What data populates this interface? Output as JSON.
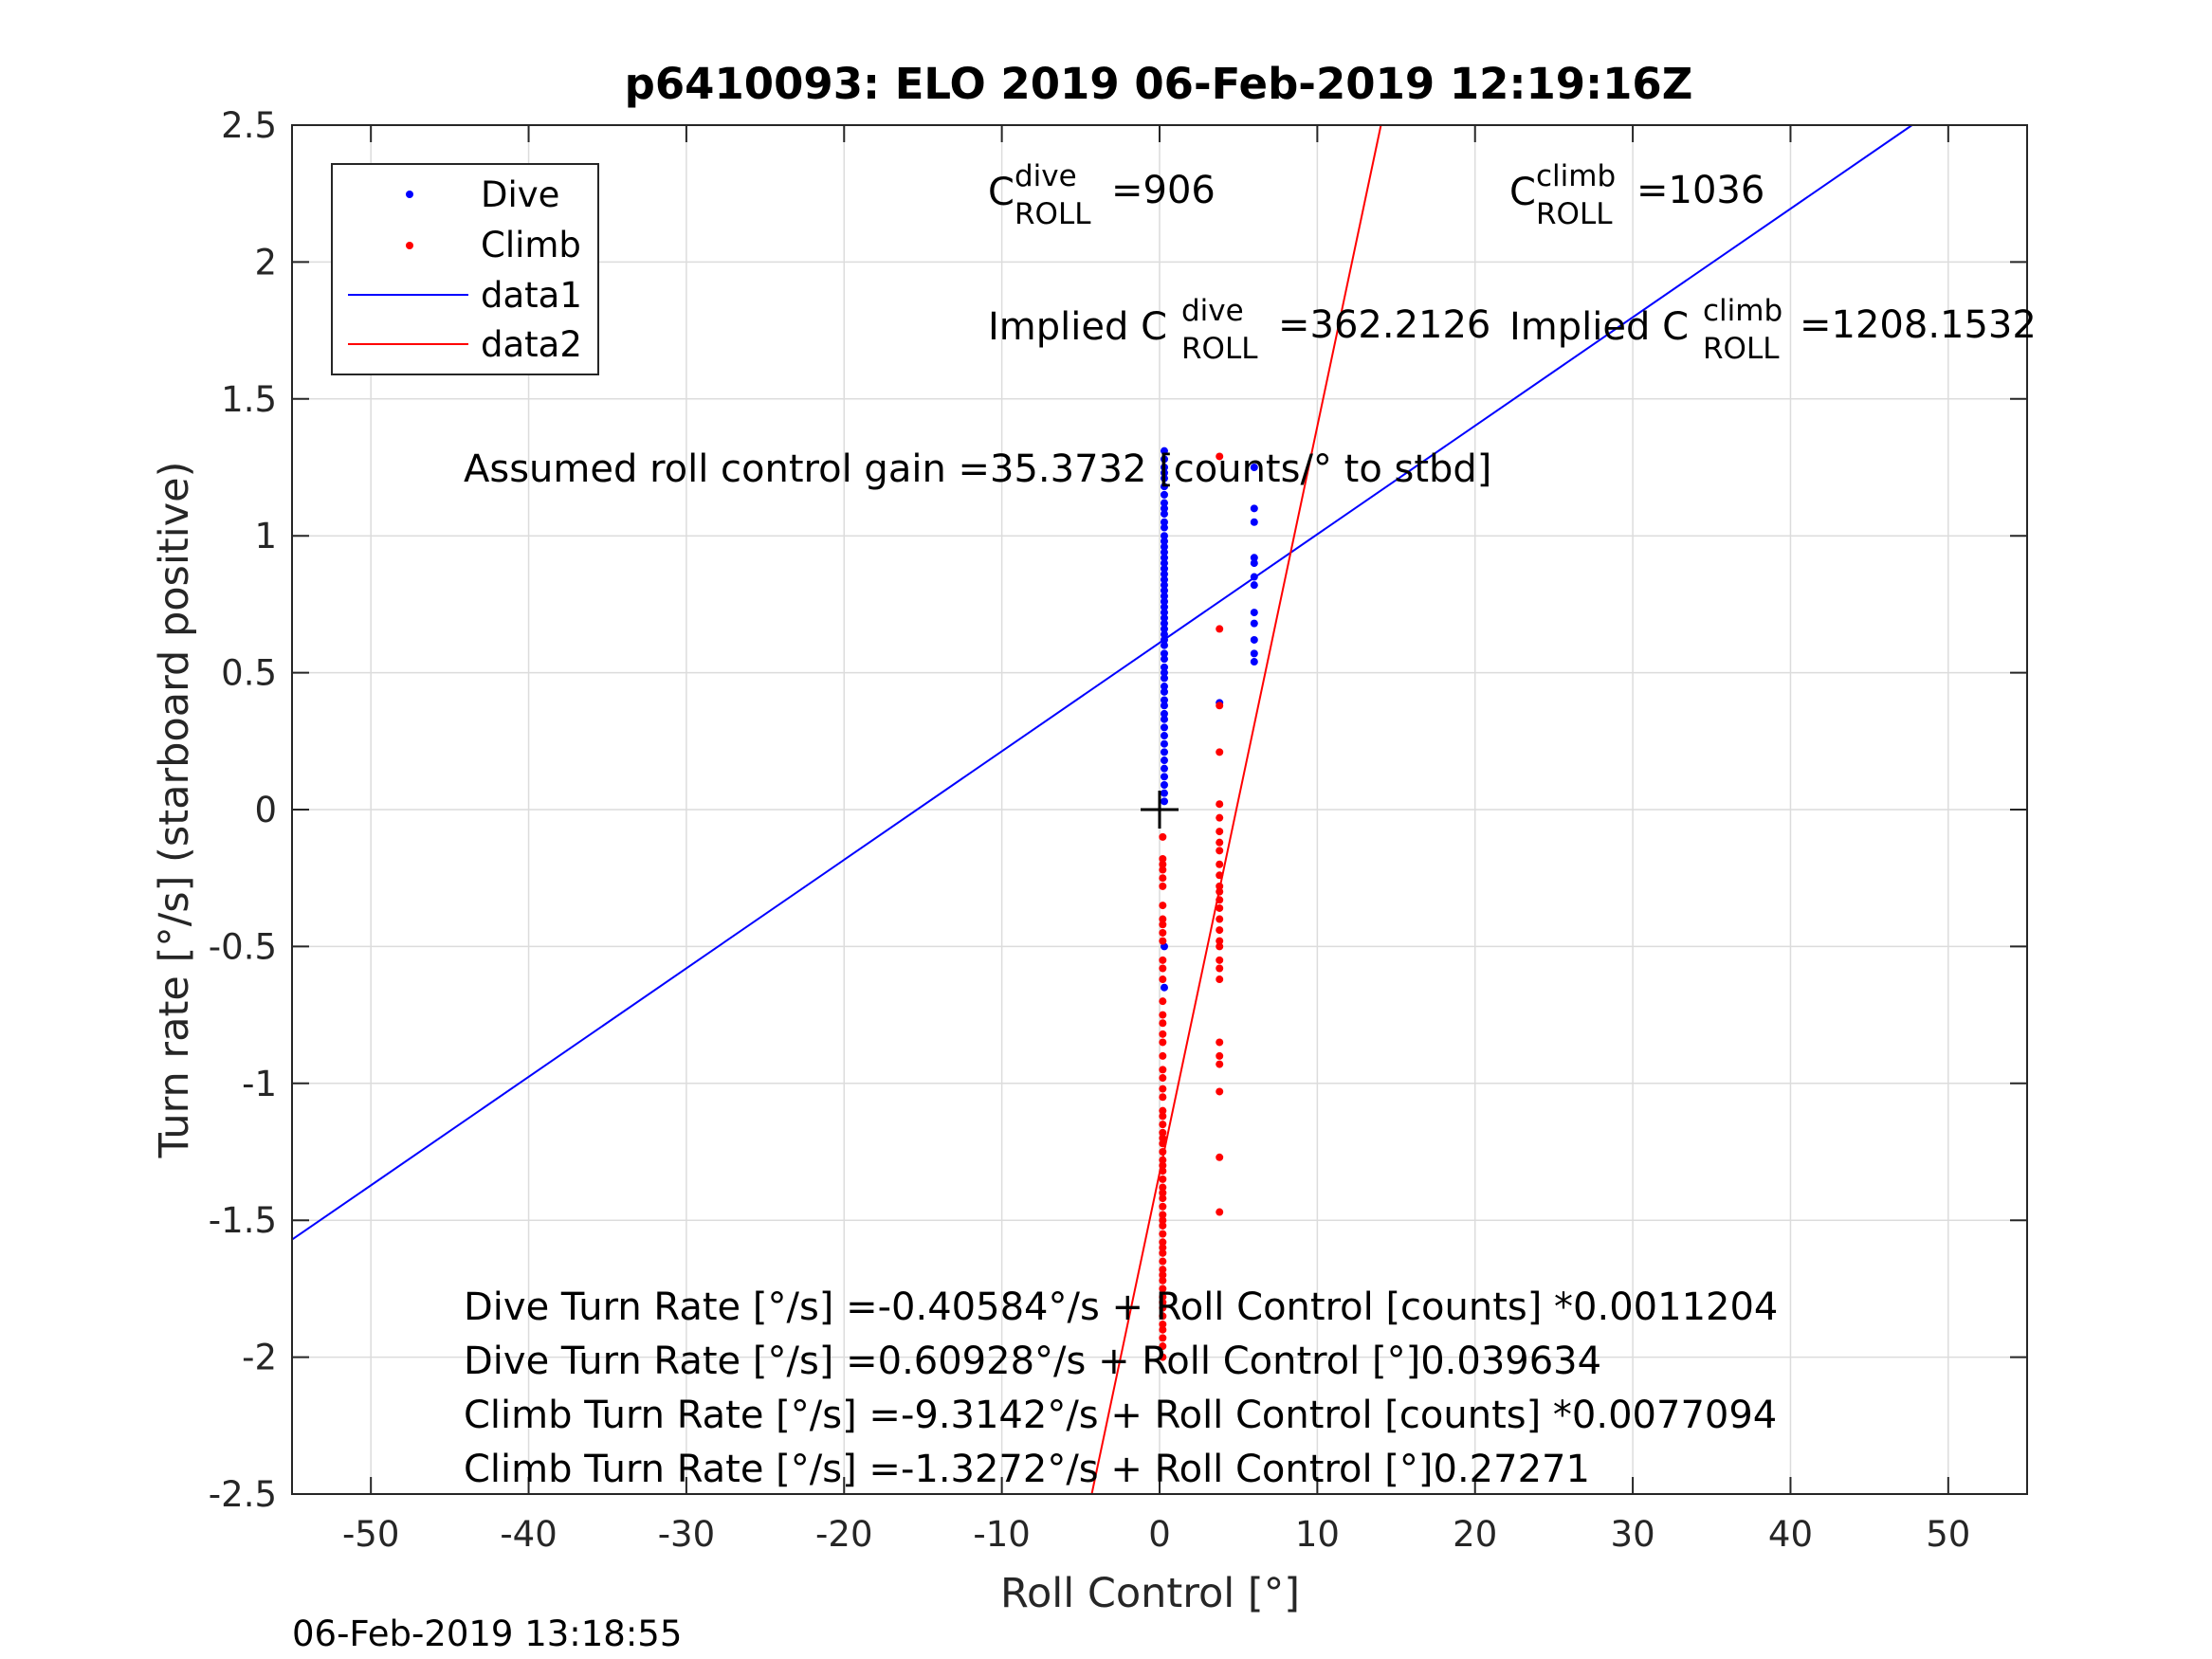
{
  "chart_data": {
    "type": "scatter",
    "title": "p6410093: ELO 2019 06-Feb-2019 12:19:16Z",
    "xlabel": "Roll Control [°]",
    "ylabel": "Turn rate [°/s] (starboard positive)",
    "xlim": [
      -55,
      55
    ],
    "ylim": [
      -2.5,
      2.5
    ],
    "x_ticks": [
      -50,
      -40,
      -30,
      -20,
      -10,
      0,
      10,
      20,
      30,
      40,
      50
    ],
    "y_ticks": [
      -2.5,
      -2,
      -1.5,
      -1,
      -0.5,
      0,
      0.5,
      1,
      1.5,
      2,
      2.5
    ],
    "x_tick_labels": [
      "-50",
      "-40",
      "-30",
      "-20",
      "-10",
      "0",
      "10",
      "20",
      "30",
      "40",
      "50"
    ],
    "y_tick_labels": [
      "-2.5",
      "-2",
      "-1.5",
      "-1",
      "-0.5",
      "0",
      "0.5",
      "1",
      "1.5",
      "2",
      "2.5"
    ],
    "grid": true,
    "legend_position": "top-left",
    "series": [
      {
        "name": "Dive",
        "kind": "points",
        "color": "#0000ff",
        "points": [
          [
            0.3,
            1.31
          ],
          [
            0.3,
            1.28
          ],
          [
            0.3,
            1.25
          ],
          [
            0.3,
            1.23
          ],
          [
            0.3,
            1.21
          ],
          [
            0.3,
            1.18
          ],
          [
            0.3,
            1.15
          ],
          [
            0.3,
            1.12
          ],
          [
            0.3,
            1.1
          ],
          [
            0.3,
            1.08
          ],
          [
            0.3,
            1.05
          ],
          [
            0.3,
            1.03
          ],
          [
            0.3,
            1.0
          ],
          [
            0.3,
            0.98
          ],
          [
            0.3,
            0.96
          ],
          [
            0.3,
            0.94
          ],
          [
            0.3,
            0.92
          ],
          [
            0.3,
            0.9
          ],
          [
            0.3,
            0.88
          ],
          [
            0.3,
            0.86
          ],
          [
            0.3,
            0.84
          ],
          [
            0.3,
            0.82
          ],
          [
            0.3,
            0.8
          ],
          [
            0.3,
            0.78
          ],
          [
            0.3,
            0.76
          ],
          [
            0.3,
            0.74
          ],
          [
            0.3,
            0.72
          ],
          [
            0.3,
            0.7
          ],
          [
            0.3,
            0.68
          ],
          [
            0.3,
            0.66
          ],
          [
            0.3,
            0.64
          ],
          [
            0.3,
            0.62
          ],
          [
            0.3,
            0.6
          ],
          [
            0.3,
            0.57
          ],
          [
            0.3,
            0.55
          ],
          [
            0.3,
            0.52
          ],
          [
            0.3,
            0.5
          ],
          [
            0.3,
            0.48
          ],
          [
            0.3,
            0.45
          ],
          [
            0.3,
            0.43
          ],
          [
            0.3,
            0.4
          ],
          [
            0.3,
            0.38
          ],
          [
            0.3,
            0.35
          ],
          [
            0.3,
            0.33
          ],
          [
            0.3,
            0.3
          ],
          [
            0.3,
            0.27
          ],
          [
            0.3,
            0.24
          ],
          [
            0.3,
            0.21
          ],
          [
            0.3,
            0.18
          ],
          [
            0.3,
            0.15
          ],
          [
            0.3,
            0.12
          ],
          [
            0.3,
            0.09
          ],
          [
            0.3,
            0.06
          ],
          [
            0.3,
            0.03
          ],
          [
            0.3,
            -0.5
          ],
          [
            0.3,
            -0.65
          ],
          [
            6,
            1.25
          ],
          [
            6,
            1.1
          ],
          [
            6,
            1.05
          ],
          [
            6,
            0.92
          ],
          [
            6,
            0.9
          ],
          [
            6,
            0.85
          ],
          [
            6,
            0.82
          ],
          [
            6,
            0.72
          ],
          [
            6,
            0.68
          ],
          [
            6,
            0.62
          ],
          [
            6,
            0.57
          ],
          [
            6,
            0.54
          ],
          [
            3.8,
            0.39
          ]
        ]
      },
      {
        "name": "Climb",
        "kind": "points",
        "color": "#ff0000",
        "points": [
          [
            0.2,
            -0.1
          ],
          [
            0.2,
            -0.18
          ],
          [
            0.2,
            -0.2
          ],
          [
            0.2,
            -0.22
          ],
          [
            0.2,
            -0.25
          ],
          [
            0.2,
            -0.28
          ],
          [
            0.2,
            -0.35
          ],
          [
            0.2,
            -0.4
          ],
          [
            0.2,
            -0.42
          ],
          [
            0.2,
            -0.45
          ],
          [
            0.2,
            -0.48
          ],
          [
            0.2,
            -0.55
          ],
          [
            0.2,
            -0.58
          ],
          [
            0.2,
            -0.62
          ],
          [
            0.2,
            -0.7
          ],
          [
            0.2,
            -0.75
          ],
          [
            0.2,
            -0.78
          ],
          [
            0.2,
            -0.82
          ],
          [
            0.2,
            -0.85
          ],
          [
            0.2,
            -0.9
          ],
          [
            0.2,
            -0.95
          ],
          [
            0.2,
            -0.98
          ],
          [
            0.2,
            -1.02
          ],
          [
            0.2,
            -1.05
          ],
          [
            0.2,
            -1.1
          ],
          [
            0.2,
            -1.12
          ],
          [
            0.2,
            -1.15
          ],
          [
            0.2,
            -1.18
          ],
          [
            0.2,
            -1.2
          ],
          [
            0.2,
            -1.22
          ],
          [
            0.2,
            -1.25
          ],
          [
            0.2,
            -1.28
          ],
          [
            0.2,
            -1.3
          ],
          [
            0.2,
            -1.32
          ],
          [
            0.2,
            -1.35
          ],
          [
            0.2,
            -1.38
          ],
          [
            0.2,
            -1.4
          ],
          [
            0.2,
            -1.42
          ],
          [
            0.2,
            -1.45
          ],
          [
            0.2,
            -1.48
          ],
          [
            0.2,
            -1.5
          ],
          [
            0.2,
            -1.52
          ],
          [
            0.2,
            -1.55
          ],
          [
            0.2,
            -1.58
          ],
          [
            0.2,
            -1.6
          ],
          [
            0.2,
            -1.62
          ],
          [
            0.2,
            -1.65
          ],
          [
            0.2,
            -1.68
          ],
          [
            0.2,
            -1.7
          ],
          [
            0.2,
            -1.72
          ],
          [
            0.2,
            -1.75
          ],
          [
            0.2,
            -1.78
          ],
          [
            0.2,
            -1.8
          ],
          [
            0.2,
            -1.82
          ],
          [
            0.2,
            -1.85
          ],
          [
            0.2,
            -1.88
          ],
          [
            0.2,
            -1.9
          ],
          [
            0.2,
            -1.93
          ],
          [
            0.2,
            -1.96
          ],
          [
            0.2,
            -2.0
          ],
          [
            3.8,
            1.29
          ],
          [
            3.8,
            0.66
          ],
          [
            3.8,
            0.38
          ],
          [
            3.8,
            0.21
          ],
          [
            3.8,
            0.02
          ],
          [
            3.8,
            -0.03
          ],
          [
            3.8,
            -0.08
          ],
          [
            3.8,
            -0.12
          ],
          [
            3.8,
            -0.15
          ],
          [
            3.8,
            -0.2
          ],
          [
            3.8,
            -0.24
          ],
          [
            3.8,
            -0.28
          ],
          [
            3.8,
            -0.3
          ],
          [
            3.8,
            -0.33
          ],
          [
            3.8,
            -0.36
          ],
          [
            3.8,
            -0.4
          ],
          [
            3.8,
            -0.44
          ],
          [
            3.8,
            -0.48
          ],
          [
            3.8,
            -0.5
          ],
          [
            3.8,
            -0.55
          ],
          [
            3.8,
            -0.58
          ],
          [
            3.8,
            -0.62
          ],
          [
            3.8,
            -0.85
          ],
          [
            3.8,
            -0.9
          ],
          [
            3.8,
            -0.93
          ],
          [
            3.8,
            -1.03
          ],
          [
            3.8,
            -1.27
          ],
          [
            3.8,
            -1.47
          ]
        ]
      },
      {
        "name": "data1",
        "kind": "line",
        "color": "#0000ff",
        "intercept": 0.60928,
        "slope": 0.039634
      },
      {
        "name": "data2",
        "kind": "line",
        "color": "#ff0000",
        "intercept": -1.3272,
        "slope": 0.27271
      }
    ],
    "origin_marker": [
      0,
      0
    ],
    "annotations": {
      "c_dive": {
        "base": "C",
        "sup": "dive",
        "sub": "ROLL",
        "value": "=906"
      },
      "c_climb": {
        "base": "C",
        "sup": "climb",
        "sub": "ROLL",
        "value": "=1036"
      },
      "implied_dive": {
        "prefix": "Implied C",
        "sup": "dive",
        "sub": "ROLL",
        "value": "=362.2126"
      },
      "implied_climb": {
        "prefix": "Implied C",
        "sup": "climb",
        "sub": "ROLL",
        "value": "=1208.1532"
      },
      "gain": "Assumed roll control gain =35.3732 [counts/° to stbd]",
      "eq1": "Dive Turn Rate [°/s] =-0.40584°/s + Roll Control [counts] *0.0011204",
      "eq2": "Dive Turn Rate [°/s] =0.60928°/s + Roll Control [°]0.039634",
      "eq3": "Climb Turn Rate [°/s] =-9.3142°/s + Roll Control [counts] *0.0077094",
      "eq4": "Climb Turn Rate [°/s] =-1.3272°/s + Roll Control [°]0.27271"
    }
  },
  "timestamp": "06-Feb-2019 13:18:55"
}
